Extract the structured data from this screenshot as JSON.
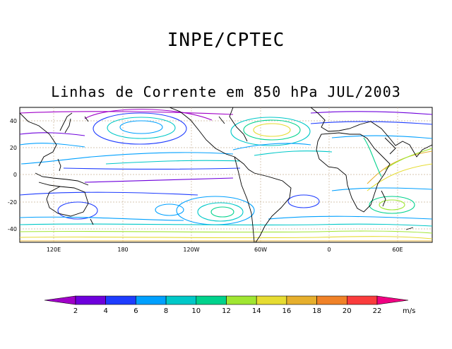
{
  "header": {
    "title": "INPE/CPTEC",
    "subtitle": "Linhas de Corrente em 850 hPa JUL/2003"
  },
  "map": {
    "lat_ticks": [
      "40",
      "20",
      "0",
      "-20",
      "-40"
    ],
    "lon_ticks": [
      "120E",
      "180",
      "120W",
      "60W",
      "0",
      "60E"
    ]
  },
  "colorbar": {
    "unit": "m/s",
    "labels": [
      "2",
      "4",
      "6",
      "8",
      "10",
      "12",
      "14",
      "16",
      "18",
      "20",
      "22"
    ],
    "colors": [
      "#a000c8",
      "#6e00dc",
      "#1e3cff",
      "#00a0ff",
      "#00c8c8",
      "#00d28c",
      "#a0e632",
      "#e6dc32",
      "#e6af2d",
      "#f08228",
      "#fa3c3c",
      "#f00082"
    ]
  }
}
